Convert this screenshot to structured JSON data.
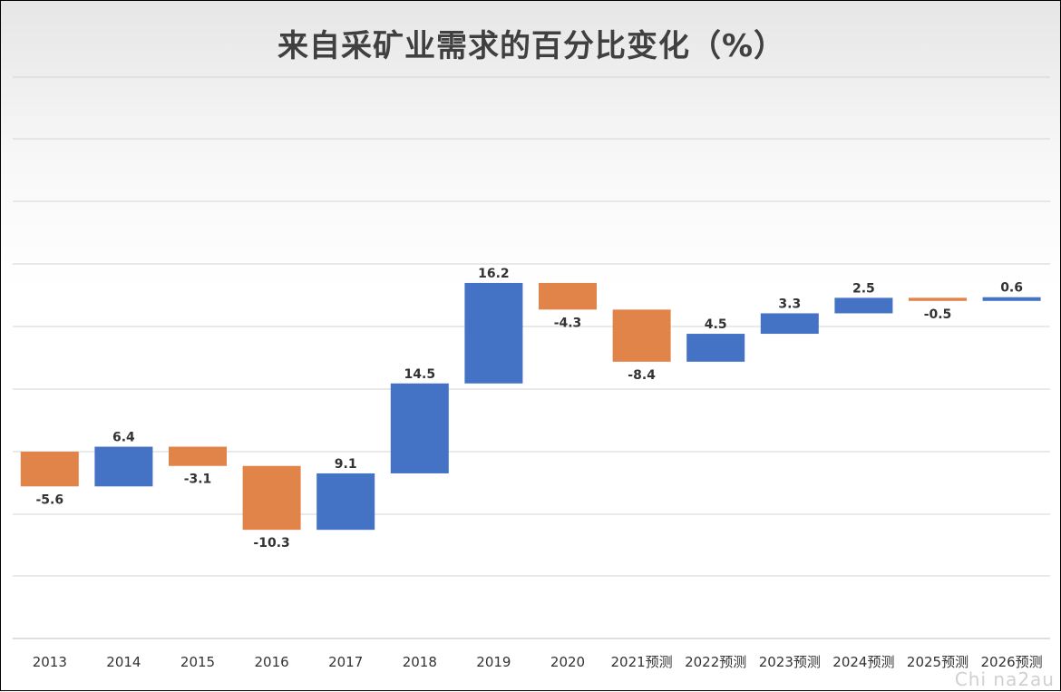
{
  "chart_data": {
    "type": "bar",
    "subtype": "waterfall",
    "title": "来自采矿业需求的百分比变化（%）",
    "categories": [
      "2013",
      "2014",
      "2015",
      "2016",
      "2017",
      "2018",
      "2019",
      "2020",
      "2021预测",
      "2022预测",
      "2023预测",
      "2024预测",
      "2025预测",
      "2026预测"
    ],
    "values": [
      -5.6,
      6.4,
      -3.1,
      -10.3,
      9.1,
      14.5,
      16.2,
      -4.3,
      -8.4,
      4.5,
      3.3,
      2.5,
      -0.5,
      0.6
    ],
    "value_labels": [
      "-5.6",
      "6.4",
      "-3.1",
      "-10.3",
      "9.1",
      "14.5",
      "16.2",
      "-4.3",
      "-8.4",
      "4.5",
      "3.3",
      "2.5",
      "-0.5",
      "0.6"
    ],
    "colors": {
      "increase": "#4472C4",
      "decrease": "#E0844A"
    },
    "grid": true,
    "legend": "none",
    "xlabel": "",
    "ylabel": ""
  },
  "watermark": "Chi na2au"
}
